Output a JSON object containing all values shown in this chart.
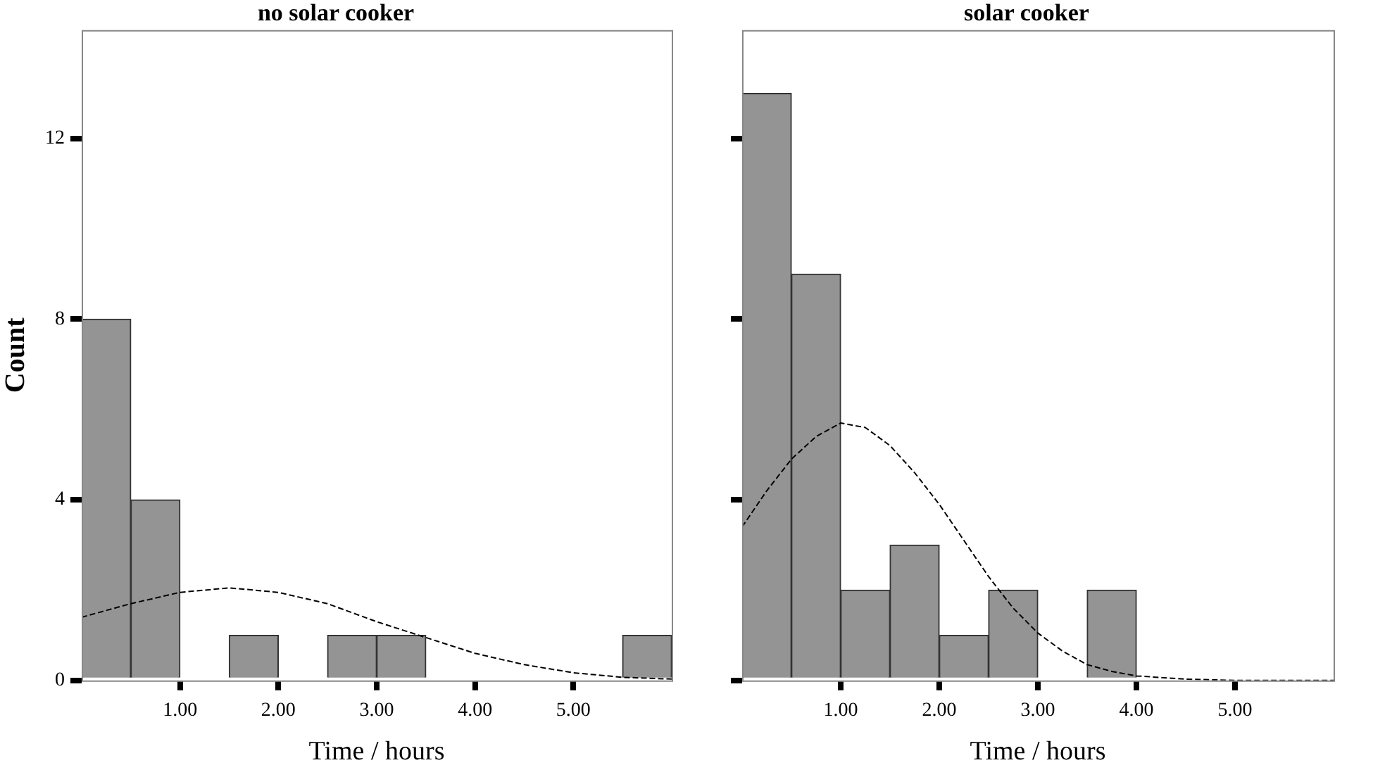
{
  "chart_data": [
    {
      "type": "histogram",
      "title": "no solar cooker",
      "xlabel": "Time / hours",
      "ylabel": "Count",
      "bins": [
        0,
        0.5,
        1,
        1.5,
        2,
        2.5,
        3,
        3.5,
        4,
        4.5,
        5,
        5.5,
        6
      ],
      "values": [
        8,
        4,
        0,
        1,
        0,
        1,
        1,
        0,
        0,
        0,
        0,
        1
      ],
      "color": "#949494",
      "xlim": [
        0,
        6
      ],
      "xticks": [
        {
          "value": 1,
          "label": "1.00"
        },
        {
          "value": 2,
          "label": "2.00"
        },
        {
          "value": 3,
          "label": "3.00"
        },
        {
          "value": 4,
          "label": "4.00"
        },
        {
          "value": 5,
          "label": "5.00"
        }
      ],
      "ylim": [
        0,
        14.4
      ],
      "yticks": [
        0,
        4,
        8,
        12
      ],
      "series": [
        {
          "type": "line",
          "color": "#000000",
          "line_style": "dashed",
          "x": [
            0,
            0.5,
            1,
            1.5,
            2,
            2.5,
            3,
            3.5,
            4,
            4.5,
            5,
            5.5,
            6
          ],
          "values": [
            1.4,
            1.7,
            1.95,
            2.05,
            1.95,
            1.7,
            1.3,
            0.95,
            0.6,
            0.35,
            0.17,
            0.07,
            0.03
          ]
        }
      ]
    },
    {
      "type": "histogram",
      "title": "solar cooker",
      "xlabel": "Time / hours",
      "bins": [
        0,
        0.5,
        1,
        1.5,
        2,
        2.5,
        3,
        3.5,
        4,
        4.5,
        5,
        5.5,
        6
      ],
      "values": [
        13,
        9,
        2,
        3,
        1,
        2,
        0,
        2,
        0,
        0,
        0,
        0
      ],
      "color": "#949494",
      "xlim": [
        0,
        6
      ],
      "xticks": [
        {
          "value": 1,
          "label": "1.00"
        },
        {
          "value": 2,
          "label": "2.00"
        },
        {
          "value": 3,
          "label": "3.00"
        },
        {
          "value": 4,
          "label": "4.00"
        },
        {
          "value": 5,
          "label": "5.00"
        }
      ],
      "ylim": [
        0,
        14.4
      ],
      "yticks": [
        0,
        4,
        8,
        12
      ],
      "tick_labels": "x",
      "series": [
        {
          "type": "line",
          "color": "#000000",
          "line_style": "dashed",
          "x": [
            0,
            0.25,
            0.5,
            0.75,
            1,
            1.25,
            1.5,
            1.75,
            2,
            2.25,
            2.5,
            2.75,
            3,
            3.25,
            3.5,
            3.75,
            4,
            4.5,
            5,
            6
          ],
          "values": [
            3.4,
            4.2,
            4.9,
            5.4,
            5.7,
            5.6,
            5.2,
            4.6,
            3.9,
            3.1,
            2.3,
            1.6,
            1.05,
            0.65,
            0.35,
            0.2,
            0.1,
            0.03,
            0,
            0
          ]
        }
      ]
    }
  ]
}
